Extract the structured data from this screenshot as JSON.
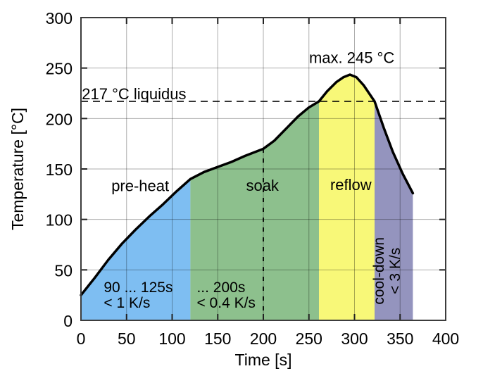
{
  "chart_data": {
    "type": "line",
    "title": "",
    "xlabel": "Time [s]",
    "ylabel": "Temperature [°C]",
    "xlim": [
      0,
      400
    ],
    "ylim": [
      0,
      300
    ],
    "xticks": [
      0,
      50,
      100,
      150,
      200,
      250,
      300,
      350,
      400
    ],
    "yticks": [
      0,
      50,
      100,
      150,
      200,
      250,
      300
    ],
    "grid": true,
    "legend": "none",
    "colors": {
      "background": "#ffffff",
      "frame": "#3c3c3c",
      "grid": "rgba(0,0,0,0.32)",
      "curve": "#000000",
      "text": "#000000",
      "preheat_fill": "#7EBEF2",
      "soak_fill": "#8DC08D",
      "reflow_fill": "#F8F878",
      "cooldown_fill": "#9494BE"
    },
    "series": [
      {
        "name": "temperature-profile",
        "color": "#000000",
        "points": [
          [
            0,
            25
          ],
          [
            15,
            42
          ],
          [
            30,
            60
          ],
          [
            45,
            76
          ],
          [
            60,
            90
          ],
          [
            75,
            103
          ],
          [
            90,
            115
          ],
          [
            105,
            128
          ],
          [
            120,
            140
          ],
          [
            135,
            147
          ],
          [
            150,
            152
          ],
          [
            165,
            157
          ],
          [
            180,
            163
          ],
          [
            200,
            170
          ],
          [
            212,
            178
          ],
          [
            225,
            190
          ],
          [
            238,
            202
          ],
          [
            250,
            211
          ],
          [
            261,
            217
          ],
          [
            270,
            227
          ],
          [
            280,
            236
          ],
          [
            288,
            241
          ],
          [
            295,
            243.5
          ],
          [
            302,
            241
          ],
          [
            310,
            233
          ],
          [
            322,
            217
          ],
          [
            332,
            191
          ],
          [
            342,
            167
          ],
          [
            353,
            145
          ],
          [
            364,
            126
          ]
        ]
      }
    ],
    "regions": [
      {
        "name": "pre-heat",
        "from": 0,
        "to": 120,
        "color": "#7EBEF2",
        "label": {
          "text": "pre-heat",
          "x": 65,
          "y": 128
        }
      },
      {
        "name": "soak",
        "from": 120,
        "to": 261,
        "color": "#8DC08D",
        "label": {
          "text": "soak",
          "x": 199,
          "y": 128.5
        }
      },
      {
        "name": "reflow",
        "from": 261,
        "to": 322,
        "color": "#F8F878",
        "label": {
          "text": "reflow",
          "x": 296,
          "y": 129
        }
      },
      {
        "name": "cool-down",
        "from": 322,
        "to": 364,
        "color": "#9494BE",
        "label": null
      }
    ],
    "reference_lines": [
      {
        "name": "liquidus",
        "orientation": "horizontal",
        "value": 217,
        "dash": "10 7",
        "label": {
          "text": "217 °C liquidus",
          "x": 1,
          "y": 219,
          "anchor": "start"
        }
      },
      {
        "name": "soak-end-200s",
        "orientation": "vertical",
        "value": 200,
        "from": 0,
        "to": 170,
        "dash": "6 8"
      }
    ],
    "annotations": [
      {
        "name": "max-temp-label",
        "text": "max. 245 °C",
        "x": 297,
        "y": 255,
        "anchor": "middle"
      },
      {
        "name": "preheat-note",
        "lines": [
          "90 ... 125s",
          "< 1 K/s"
        ],
        "x": 25,
        "y": [
          28,
          12.5
        ],
        "anchor": "start"
      },
      {
        "name": "soak-note",
        "lines": [
          "... 200s",
          "< 0.4 K/s"
        ],
        "x": 127,
        "y": [
          28,
          12.5
        ],
        "anchor": "start"
      },
      {
        "name": "cooldown-note",
        "lines": [
          "cool-down",
          "< 3 K/s"
        ],
        "x": [
          332,
          350
        ],
        "y": 49,
        "rotated": true
      }
    ]
  }
}
